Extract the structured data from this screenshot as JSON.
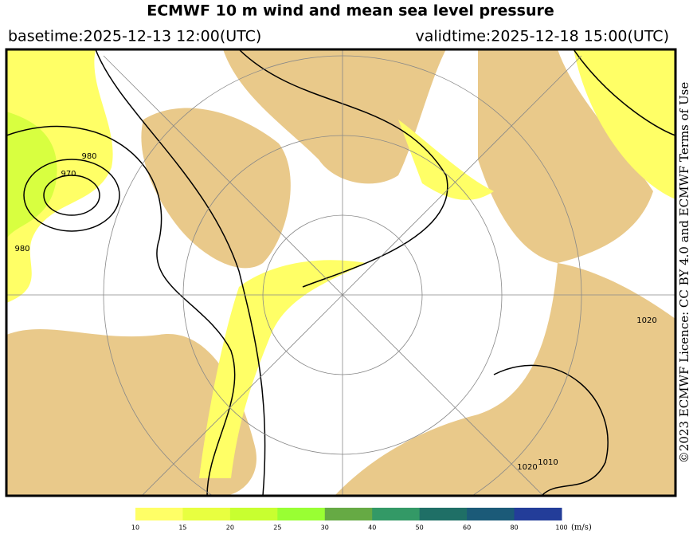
{
  "header": {
    "title": "ECMWF 10 m wind and mean sea level pressure",
    "basetime": "basetime:2025-12-13 12:00(UTC)",
    "validtime": "validtime:2025-12-18 15:00(UTC)"
  },
  "map": {
    "isobar_labels": [
      "980",
      "970",
      "980",
      "1020",
      "1010",
      "1020"
    ]
  },
  "legend": {
    "ticks": [
      10,
      15,
      20,
      25,
      30,
      40,
      50,
      60,
      80,
      100
    ],
    "unit": "(m/s)",
    "colors": [
      "#ffff66",
      "#e8ff40",
      "#c8ff30",
      "#99ff33",
      "#66aa44",
      "#339966",
      "#1f6f66",
      "#1b5a78",
      "#233d99"
    ]
  },
  "credit": "©2023 ECMWF Licence: CC BY 4.0 and ECMWF Terms of Use"
}
